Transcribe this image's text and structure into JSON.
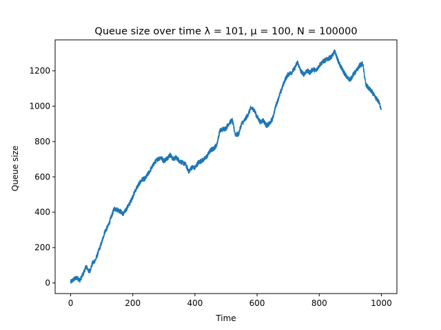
{
  "chart_data": {
    "type": "line",
    "title": "Queue size over time λ = 101, μ = 100, N = 100000",
    "xlabel": "Time",
    "ylabel": "Queue size",
    "xlim": [
      -50,
      1050
    ],
    "ylim": [
      -60,
      1375
    ],
    "x_ticks": [
      0,
      200,
      400,
      600,
      800,
      1000
    ],
    "y_ticks": [
      0,
      200,
      400,
      600,
      800,
      1000,
      1200
    ],
    "grid": false,
    "legend": "none",
    "series": [
      {
        "color": "#1f77b4",
        "x": [
          0,
          10,
          20,
          30,
          40,
          50,
          60,
          70,
          80,
          90,
          100,
          110,
          120,
          130,
          140,
          150,
          160,
          170,
          180,
          190,
          200,
          210,
          220,
          230,
          240,
          250,
          260,
          270,
          280,
          290,
          300,
          310,
          320,
          330,
          340,
          350,
          360,
          370,
          380,
          390,
          400,
          410,
          420,
          430,
          440,
          450,
          460,
          470,
          480,
          490,
          500,
          510,
          520,
          530,
          540,
          550,
          560,
          570,
          580,
          590,
          600,
          610,
          620,
          630,
          640,
          650,
          660,
          670,
          680,
          690,
          700,
          710,
          720,
          730,
          740,
          750,
          760,
          770,
          780,
          790,
          800,
          810,
          820,
          830,
          840,
          850,
          860,
          870,
          880,
          890,
          900,
          910,
          920,
          930,
          940,
          950,
          960,
          970,
          980,
          990,
          1000
        ],
        "y": [
          5,
          20,
          30,
          15,
          50,
          95,
          60,
          110,
          130,
          180,
          230,
          290,
          320,
          370,
          420,
          415,
          405,
          390,
          420,
          450,
          490,
          530,
          560,
          585,
          590,
          620,
          650,
          680,
          700,
          710,
          690,
          705,
          725,
          700,
          710,
          690,
          680,
          670,
          630,
          655,
          650,
          680,
          690,
          700,
          720,
          750,
          760,
          780,
          860,
          870,
          875,
          905,
          920,
          840,
          840,
          900,
          920,
          950,
          990,
          980,
          940,
          910,
          920,
          890,
          900,
          930,
          1000,
          1050,
          1100,
          1150,
          1180,
          1190,
          1210,
          1250,
          1200,
          1180,
          1200,
          1190,
          1210,
          1200,
          1230,
          1250,
          1260,
          1270,
          1280,
          1310,
          1260,
          1220,
          1190,
          1160,
          1150,
          1180,
          1200,
          1230,
          1240,
          1120,
          1100,
          1080,
          1050,
          1030,
          985
        ]
      }
    ]
  }
}
